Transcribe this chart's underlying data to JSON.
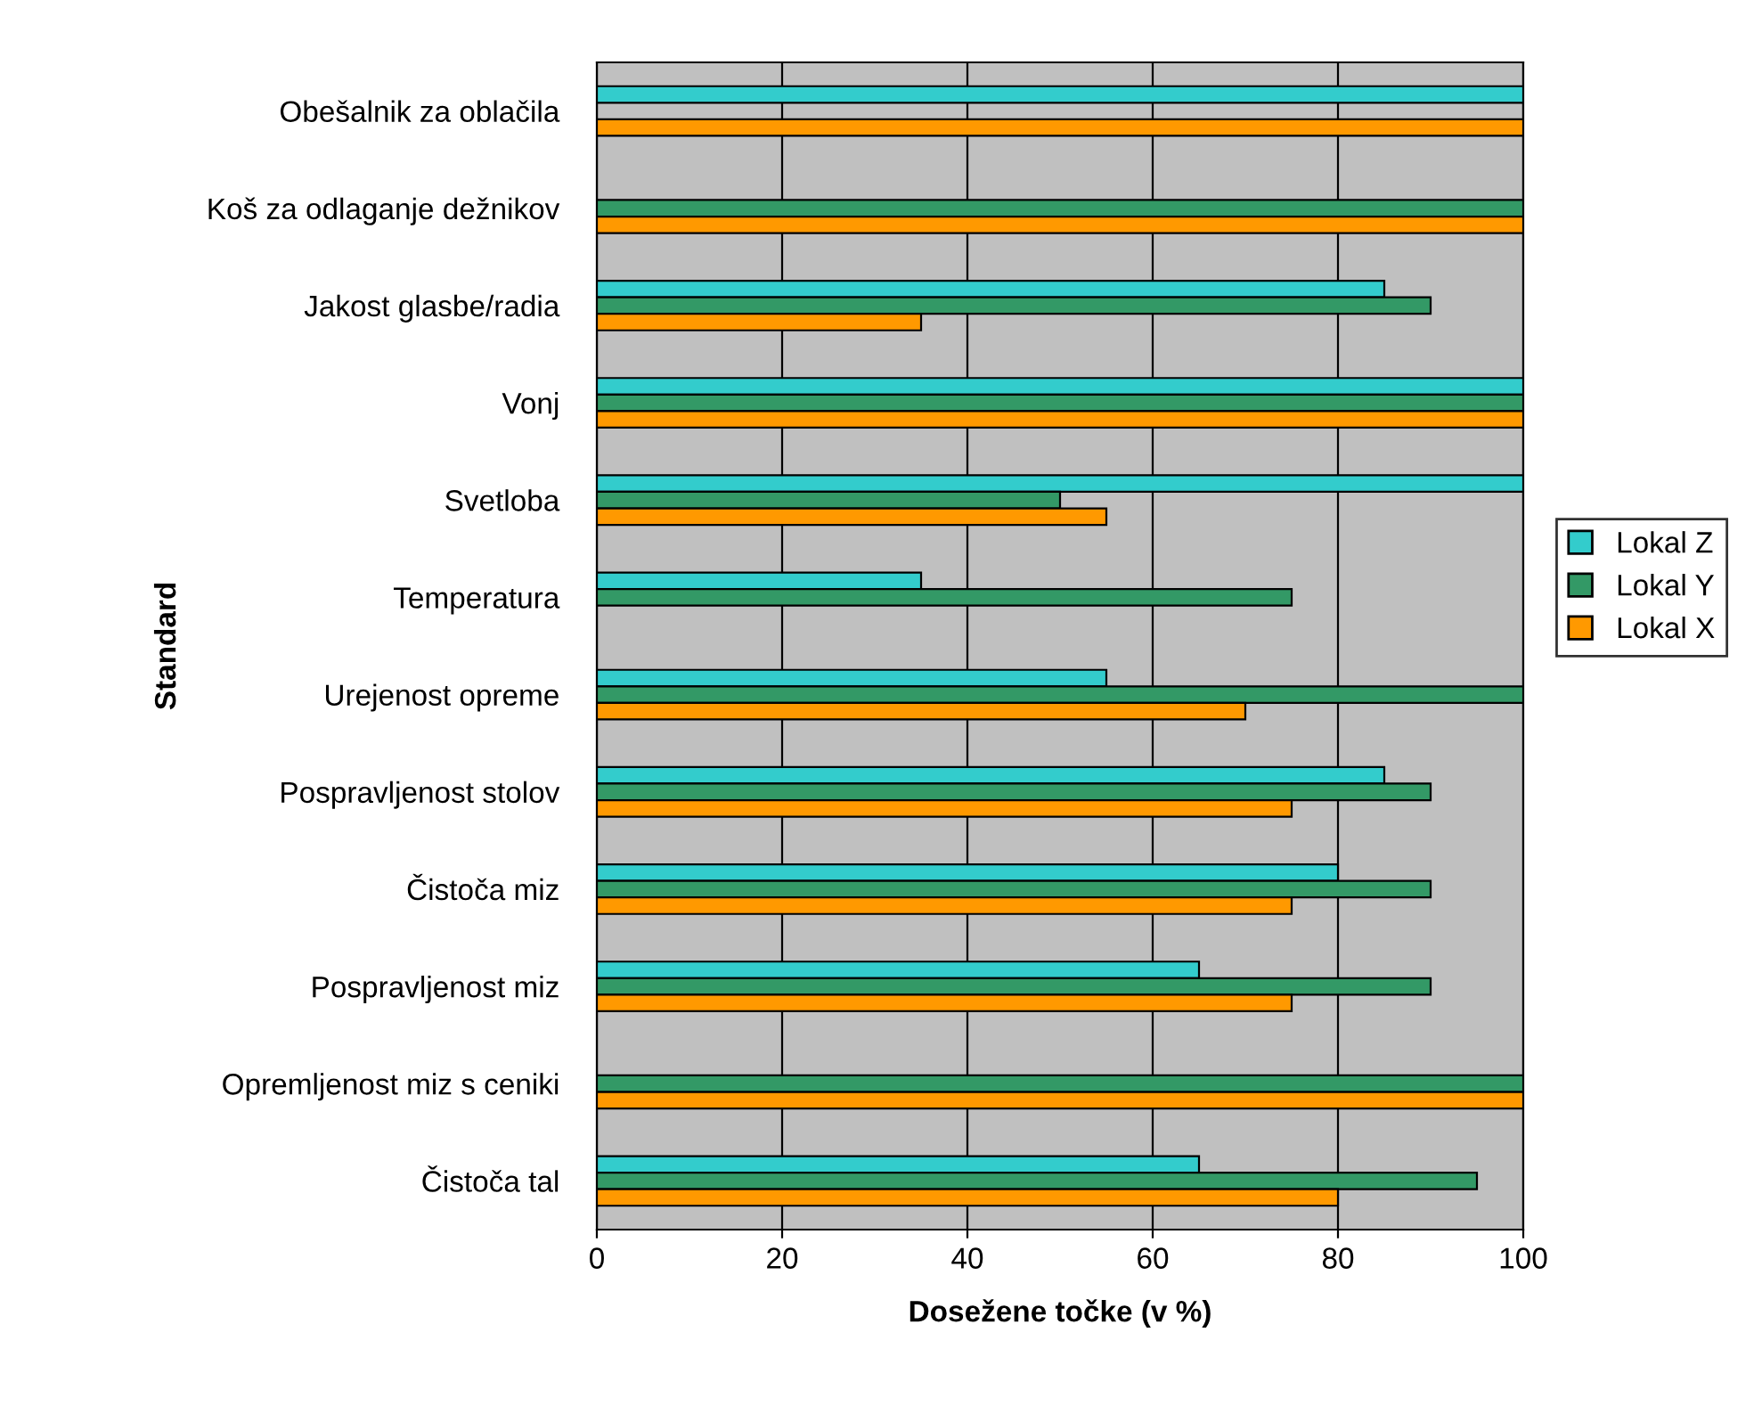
{
  "chart_data": {
    "type": "bar",
    "orientation": "horizontal",
    "xlabel": "Dosežene točke (v %)",
    "ylabel": "Standard",
    "categories": [
      "Obešalnik za oblačila",
      "Koš za odlaganje dežnikov",
      "Jakost glasbe/radia",
      "Vonj",
      "Svetloba",
      "Temperatura",
      "Urejenost opreme",
      "Pospravljenost stolov",
      "Čistoča miz",
      "Pospravljenost miz",
      "Opremljenost miz s ceniki",
      "Čistoča tal"
    ],
    "series": [
      {
        "name": "Lokal Z",
        "color": "#33cccc",
        "values": [
          100,
          null,
          85,
          100,
          100,
          35,
          55,
          85,
          80,
          65,
          null,
          65
        ]
      },
      {
        "name": "Lokal Y",
        "color": "#339966",
        "values": [
          null,
          100,
          90,
          100,
          50,
          75,
          100,
          90,
          90,
          90,
          100,
          95
        ]
      },
      {
        "name": "Lokal X",
        "color": "#ff9900",
        "values": [
          100,
          100,
          35,
          100,
          55,
          null,
          70,
          75,
          75,
          75,
          100,
          80
        ]
      }
    ],
    "xlim": [
      0,
      100
    ],
    "xticks": [
      0,
      20,
      40,
      60,
      80,
      100
    ],
    "grid": "x",
    "legend": "right"
  }
}
